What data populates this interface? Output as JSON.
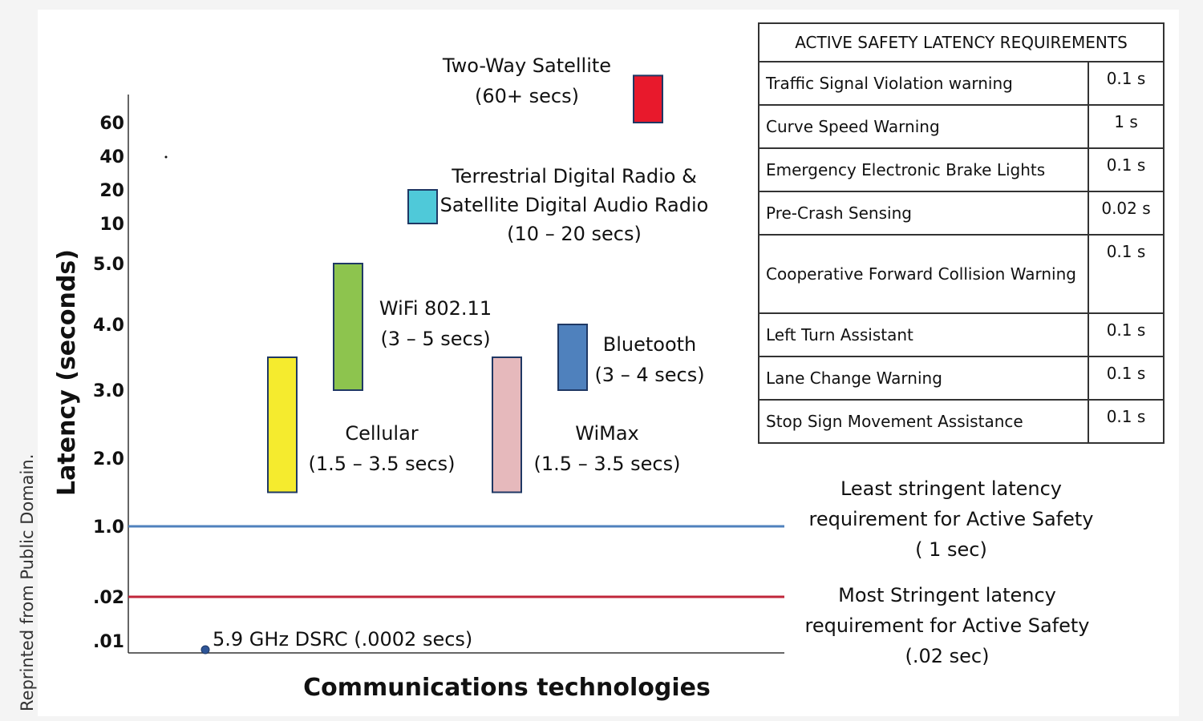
{
  "credit": "Reprinted from Public Domain.",
  "table": {
    "title": "ACTIVE SAFETY LATENCY REQUIREMENTS",
    "rows": [
      {
        "label": "Traffic Signal Violation warning",
        "value": "0.1 s"
      },
      {
        "label": "Curve Speed Warning",
        "value": "1 s"
      },
      {
        "label": "Emergency Electronic Brake Lights",
        "value": "0.1 s"
      },
      {
        "label": "Pre-Crash Sensing",
        "value": "0.02 s"
      },
      {
        "label": "Cooperative Forward Collision Warning",
        "value": "0.1 s"
      },
      {
        "label": "Left Turn Assistant",
        "value": "0.1 s"
      },
      {
        "label": "Lane Change Warning",
        "value": "0.1 s"
      },
      {
        "label": "Stop Sign Movement Assistance",
        "value": "0.1 s"
      }
    ]
  },
  "chart_data": {
    "type": "bar",
    "xlabel": "Communications technologies",
    "ylabel": "Latency (seconds)",
    "y_ticks": [
      ".01",
      ".02",
      "1.0",
      "2.0",
      "3.0",
      "4.0",
      "5.0",
      "10",
      "20",
      "40",
      "60"
    ],
    "y_tick_values": [
      0.01,
      0.02,
      1,
      2,
      3,
      4,
      5,
      10,
      20,
      40,
      60
    ],
    "y_scale": "piecewise (as printed ticks)",
    "bars": [
      {
        "name": "Cellular",
        "range_label": "(1.5 – 3.5 secs)",
        "low": 1.5,
        "high": 3.5,
        "color": "#f5eb2e"
      },
      {
        "name": "WiFi 802.11",
        "range_label": "(3 – 5 secs)",
        "low": 3,
        "high": 5,
        "color": "#8dc44e"
      },
      {
        "name": "WiMax",
        "range_label": "(1.5 – 3.5 secs)",
        "low": 1.5,
        "high": 3.5,
        "color": "#e6b9bc"
      },
      {
        "name": "Bluetooth",
        "range_label": "(3 – 4 secs)",
        "low": 3,
        "high": 4,
        "color": "#4f81bd"
      },
      {
        "name": "Terrestrial Digital Radio & Satellite Digital Audio Radio",
        "range_label": "(10 – 20 secs)",
        "low": 10,
        "high": 20,
        "color": "#4fc9d9"
      },
      {
        "name": "Two-Way Satellite",
        "range_label": "(60+ secs)",
        "low": 60,
        "high": 100,
        "color": "#e8192c"
      }
    ],
    "point": {
      "label": "5.9 GHz  DSRC (.0002 secs)",
      "value": 0.0002,
      "color": "#2e5597"
    },
    "reference_lines": [
      {
        "value": 1.0,
        "color": "#4f81bd",
        "label_lines": [
          "Least stringent latency",
          "requirement for Active Safety",
          "( 1 sec)"
        ]
      },
      {
        "value": 0.02,
        "color": "#c0263a",
        "label_lines": [
          "Most Stringent latency",
          "requirement for Active Safety",
          "(.02 sec)"
        ]
      }
    ]
  }
}
